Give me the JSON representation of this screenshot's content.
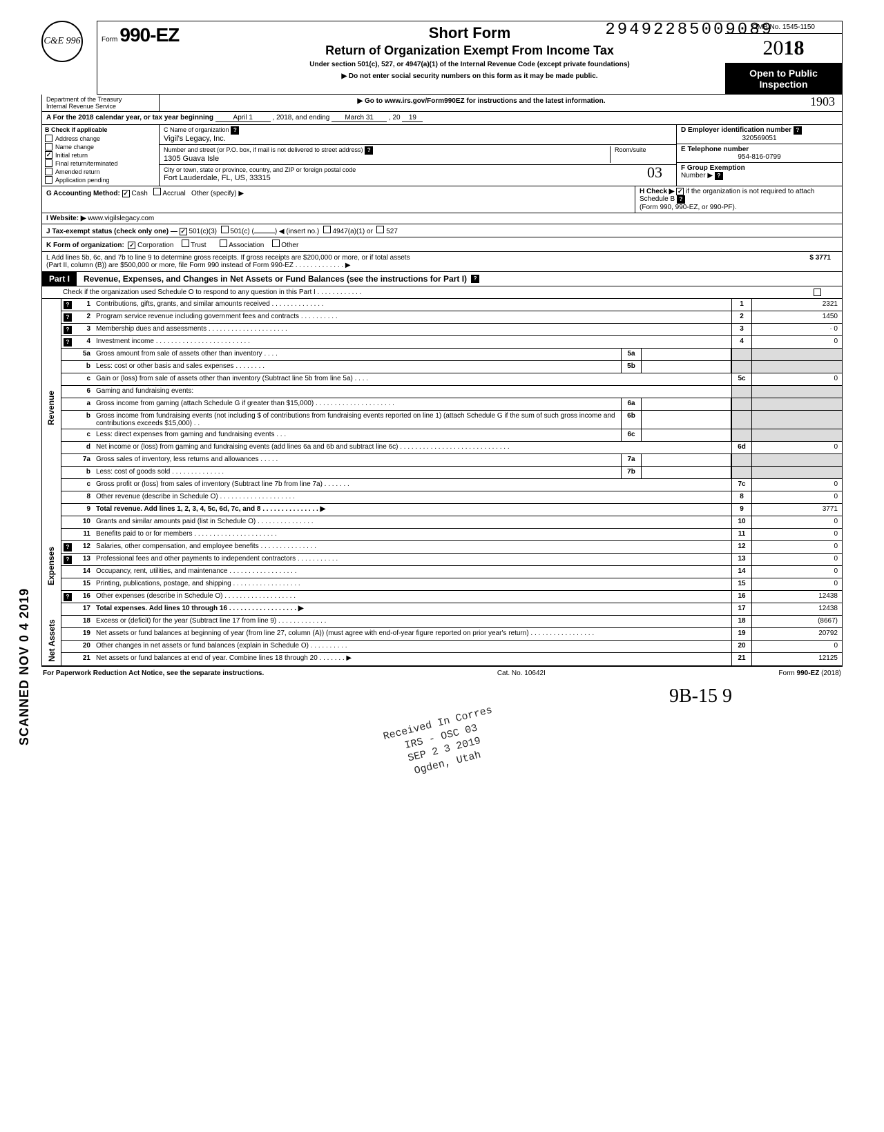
{
  "dln": "29492285009089",
  "stamp_initials": "C&E 996",
  "header": {
    "form_prefix": "Form",
    "form_number": "990-EZ",
    "title1": "Short Form",
    "title2": "Return of Organization Exempt From Income Tax",
    "subtitle": "Under section 501(c), 527, or 4947(a)(1) of the Internal Revenue Code (except private foundations)",
    "note1": "▶ Do not enter social security numbers on this form as it may be made public.",
    "note2": "▶ Go to www.irs.gov/Form990EZ for instructions and the latest information.",
    "omb": "OMB No. 1545-1150",
    "year_prefix": "20",
    "year_bold": "18",
    "open_public": "Open to Public Inspection",
    "dept1": "Department of the Treasury",
    "dept2": "Internal Revenue Service",
    "handwrite_1903": "1903"
  },
  "period": {
    "label_a": "A For the 2018 calendar year, or tax year beginning",
    "begin": "April 1",
    "mid": ", 2018, and ending",
    "end": "March 31",
    "yr_lbl": ", 20",
    "yr": "19"
  },
  "checkboxes": {
    "header": "B  Check if applicable",
    "items": [
      {
        "label": "Address change",
        "checked": false
      },
      {
        "label": "Name change",
        "checked": false
      },
      {
        "label": "Initial return",
        "checked": true
      },
      {
        "label": "Final return/terminated",
        "checked": false
      },
      {
        "label": "Amended return",
        "checked": false
      },
      {
        "label": "Application pending",
        "checked": false
      }
    ]
  },
  "entity": {
    "name_label": "C  Name of organization",
    "name": "Vigil's Legacy, Inc.",
    "addr_label": "Number and street (or P.O. box, if mail is not delivered to street address)",
    "room_label": "Room/suite",
    "addr": "1305 Guava Isle",
    "city_label": "City or town, state or province, country, and ZIP or foreign postal code",
    "city": "Fort Lauderdale, FL, US, 33315",
    "handwrite_o3": "03",
    "ein_label": "D Employer identification number",
    "ein": "320569051",
    "phone_label": "E Telephone number",
    "phone": "954-816-0799",
    "group_label": "F Group Exemption",
    "group_number": "Number ▶"
  },
  "row_g": {
    "g": "G  Accounting Method:",
    "cash": "Cash",
    "accrual": "Accrual",
    "other": "Other (specify) ▶",
    "h": "H  Check ▶",
    "h_text": "if the organization is not required to attach Schedule B",
    "h2": "(Form 990, 990-EZ, or 990-PF)."
  },
  "row_i": {
    "i": "I   Website: ▶",
    "site": "www.vigilslegacy.com"
  },
  "row_j": {
    "j": "J  Tax-exempt status (check only one) —",
    "c3": "501(c)(3)",
    "c": "501(c) (",
    "insert": ") ◀ (insert no.)",
    "a1": "4947(a)(1) or",
    "s527": "527"
  },
  "row_k": {
    "k": "K  Form of organization:",
    "corp": "Corporation",
    "trust": "Trust",
    "assoc": "Association",
    "other": "Other"
  },
  "row_l": {
    "l1": "L  Add lines 5b, 6c, and 7b to line 9 to determine gross receipts. If gross receipts are $200,000 or more, or if total assets",
    "l2": "(Part II, column (B)) are $500,000 or more, file Form 990 instead of Form 990-EZ .   .   .   .   .   .   .   .   .   .   .   .   .   ▶",
    "amount": "3771"
  },
  "part1": {
    "tab": "Part I",
    "title": "Revenue, Expenses, and Changes in Net Assets or Fund Balances (see the instructions for Part I)",
    "check_line": "Check if the organization used Schedule O to respond to any question in this Part I .   .   .   .   .   .   .   .   .   .   .   ."
  },
  "sections": {
    "revenue": "Revenue",
    "expenses": "Expenses",
    "netassets": "Net Assets"
  },
  "lines": {
    "1": {
      "desc": "Contributions, gifts, grants, and similar amounts received .   .   .   .   .   .   .   .   .   .   .   .   .   .",
      "rn": "1",
      "rv": "2321",
      "help": true
    },
    "2": {
      "desc": "Program service revenue including government fees and contracts   .   .   .   .   .   .   .   .   .   .",
      "rn": "2",
      "rv": "1450",
      "help": true
    },
    "3": {
      "desc": "Membership dues and assessments .   .   .   .   .   .   .   .   .   .   .   .   .   .   .   .   .   .   .   .   .",
      "rn": "3",
      "rv": "· 0",
      "help": true
    },
    "4": {
      "desc": "Investment income   .   .   .   .   .   .   .   .   .   .   .   .   .   .   .   .   .   .   .   .   .   .   .   .   .",
      "rn": "4",
      "rv": "0",
      "help": true
    },
    "5a": {
      "desc": "Gross amount from sale of assets other than inventory   .   .   .   .",
      "mn": "5a"
    },
    "5b": {
      "desc": "Less: cost or other basis and sales expenses .   .   .   .   .   .   .   .",
      "mn": "5b"
    },
    "5c": {
      "desc": "Gain or (loss) from sale of assets other than inventory (Subtract line 5b from line 5a) .   .   .   .",
      "rn": "5c",
      "rv": "0"
    },
    "6": {
      "desc": "Gaming and fundraising events:"
    },
    "6a": {
      "desc": "Gross income from gaming (attach Schedule G if greater than $15,000) .   .   .   .   .   .   .   .   .   .   .   .   .   .   .   .   .   .   .   .   .",
      "mn": "6a"
    },
    "6b": {
      "desc": "Gross income from fundraising events (not including  $                          of contributions from fundraising events reported on line 1) (attach Schedule G if the sum of such gross income and contributions exceeds $15,000) .   .",
      "mn": "6b"
    },
    "6c": {
      "desc": "Less: direct expenses from gaming and fundraising events   .   .   .",
      "mn": "6c"
    },
    "6d": {
      "desc": "Net income or (loss) from gaming and fundraising events (add lines 6a and 6b and subtract line 6c)   .   .   .   .   .   .   .   .   .   .   .   .   .   .   .   .   .   .   .   .   .   .   .   .   .   .   .   .   .",
      "rn": "6d",
      "rv": "0"
    },
    "7a": {
      "desc": "Gross sales of inventory, less returns and allowances   .   .   .   .   .",
      "mn": "7a"
    },
    "7b": {
      "desc": "Less: cost of goods sold   .   .   .   .   .   .   .   .   .   .   .   .   .   .",
      "mn": "7b"
    },
    "7c": {
      "desc": "Gross profit or (loss) from sales of inventory (Subtract line 7b from line 7a)   .   .   .   .   .   .   .",
      "rn": "7c",
      "rv": "0"
    },
    "8": {
      "desc": "Other revenue (describe in Schedule O) .   .   .   .   .   .   .   .   .   .   .   .   .   .   .   .   .   .   .   .",
      "rn": "8",
      "rv": "0"
    },
    "9": {
      "desc": "Total revenue. Add lines 1, 2, 3, 4, 5c, 6d, 7c, and 8   .   .   .   .   .   .   .   .   .   .   .   .   .   .   .   ▶",
      "rn": "9",
      "rv": "3771",
      "bold": true
    },
    "10": {
      "desc": "Grants and similar amounts paid (list in Schedule O)   .   .   .   .   .   .   .   .   .   .   .   .   .   .   .",
      "rn": "10",
      "rv": "0"
    },
    "11": {
      "desc": "Benefits paid to or for members   .   .   .   .   .   .   .   .   .   .   .   .   .   .   .   .   .   .   .   .   .   .",
      "rn": "11",
      "rv": "0"
    },
    "12": {
      "desc": "Salaries, other compensation, and employee benefits    .   .   .   .   .   .   .   .   .   .   .   .   .   .   .",
      "rn": "12",
      "rv": "0",
      "help": true
    },
    "13": {
      "desc": "Professional fees and other payments to independent contractors    .   .   .   .   .   .   .   .   .   .   .",
      "rn": "13",
      "rv": "0",
      "help": true
    },
    "14": {
      "desc": "Occupancy, rent, utilities, and maintenance   .   .   .   .   .   .   .   .   .   .   .   .   .   .   .   .   .   .",
      "rn": "14",
      "rv": "0"
    },
    "15": {
      "desc": "Printing, publications, postage, and shipping .   .   .   .   .   .   .   .   .   .   .   .   .   .   .   .   .   .",
      "rn": "15",
      "rv": "0"
    },
    "16": {
      "desc": "Other expenses (describe in Schedule O)    .   .   .   .   .   .   .   .   .   .   .   .   .   .   .   .   .   .   .",
      "rn": "16",
      "rv": "12438",
      "help": true
    },
    "17": {
      "desc": "Total expenses. Add lines 10 through 16   .   .   .   .   .   .   .   .   .   .   .   .   .   .   .   .   .   .   ▶",
      "rn": "17",
      "rv": "12438",
      "bold": true
    },
    "18": {
      "desc": "Excess or (deficit) for the year (Subtract line 17 from line 9)   .   .   .   .   .   .   .   .   .   .   .   .   .",
      "rn": "18",
      "rv": "(8667)"
    },
    "19": {
      "desc": "Net assets or fund balances at beginning of year (from line 27, column (A)) (must agree with end-of-year figure reported on prior year's return)   .   .   .   .   .   .   .   .   .   .   .   .   .   .   .   .   .",
      "rn": "19",
      "rv": "20792"
    },
    "20": {
      "desc": "Other changes in net assets or fund balances (explain in Schedule O) .   .   .   .   .   .   .   .   .   .",
      "rn": "20",
      "rv": "0"
    },
    "21": {
      "desc": "Net assets or fund balances at end of year. Combine lines 18 through 20   .   .   .   .   .   .   .   ▶",
      "rn": "21",
      "rv": "12125"
    }
  },
  "footer": {
    "left": "For Paperwork Reduction Act Notice, see the separate instructions.",
    "mid": "Cat. No. 10642I",
    "right": "Form 990-EZ (2018)"
  },
  "scanned": "SCANNED NOV 0 4 2019",
  "handwrite_sig": "9B-15        9",
  "received_stamp": {
    "l1": "Received In Corres",
    "l2": "IRS - OSC  03",
    "l3": "SEP 2 3 2019",
    "l4": "Ogden, Utah"
  }
}
